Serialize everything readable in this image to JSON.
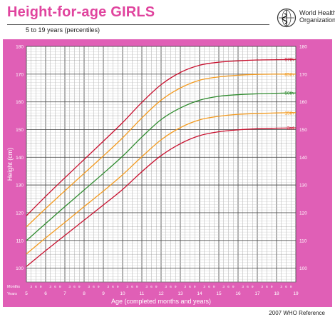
{
  "header": {
    "title": "Height-for-age  GIRLS",
    "subtitle": "5 to 19 years (percentiles)",
    "org_line1": "World Health",
    "org_line2": "Organization"
  },
  "footer": {
    "reference": "2007 WHO Reference"
  },
  "colors": {
    "panel": "#e05fb6",
    "p97": "#c8102e",
    "p85": "#f39a1e",
    "p50": "#2e8b2e",
    "p15": "#f39a1e",
    "p3": "#c8102e"
  },
  "chart_data": {
    "type": "line",
    "title": "Height-for-age  GIRLS",
    "subtitle": "5 to 19 years (percentiles)",
    "xlabel": "Age (completed months and years)",
    "ylabel": "Height (cm)",
    "xlim": [
      5,
      19
    ],
    "ylim": [
      95,
      180
    ],
    "x_ticks": [
      "5",
      "6",
      "7",
      "8",
      "9",
      "10",
      "11",
      "12",
      "13",
      "14",
      "15",
      "16",
      "17",
      "18",
      "19"
    ],
    "y_ticks": [
      "100",
      "110",
      "120",
      "130",
      "140",
      "150",
      "160",
      "170",
      "180"
    ],
    "month_row_label": "Months",
    "year_row_label": "Years",
    "month_ticks": [
      "3",
      "6",
      "9"
    ],
    "grid": true,
    "x": [
      5,
      6,
      7,
      8,
      9,
      10,
      11,
      12,
      13,
      14,
      15,
      16,
      17,
      18,
      19
    ],
    "series": [
      {
        "name": "97th",
        "values": [
          118.9,
          125.9,
          132.6,
          139.2,
          145.8,
          152.5,
          159.8,
          166.2,
          170.6,
          173.2,
          174.3,
          174.8,
          175.1,
          175.2,
          175.3
        ]
      },
      {
        "name": "85th",
        "values": [
          114.9,
          121.5,
          127.9,
          134.2,
          140.5,
          147.0,
          154.2,
          160.6,
          165.0,
          167.8,
          169.0,
          169.6,
          169.9,
          170.0,
          170.0
        ]
      },
      {
        "name": "50th",
        "values": [
          109.9,
          116.1,
          122.2,
          128.2,
          134.2,
          140.4,
          147.3,
          153.6,
          157.8,
          160.6,
          162.0,
          162.6,
          162.9,
          163.1,
          163.2
        ]
      },
      {
        "name": "15th",
        "values": [
          105.1,
          110.9,
          116.5,
          122.2,
          127.8,
          133.7,
          140.2,
          146.3,
          150.7,
          153.5,
          154.8,
          155.5,
          155.8,
          156.0,
          156.1
        ]
      },
      {
        "name": "3rd",
        "values": [
          100.6,
          106.3,
          111.8,
          117.3,
          122.8,
          128.4,
          134.8,
          140.6,
          144.9,
          147.8,
          149.2,
          149.9,
          150.3,
          150.5,
          150.6
        ]
      }
    ]
  }
}
